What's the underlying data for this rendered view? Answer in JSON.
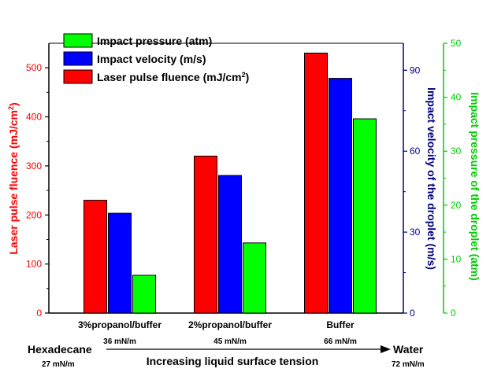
{
  "chart_data": {
    "type": "bar",
    "categories": [
      "3%propanol/buffer",
      "2%propanol/buffer",
      "Buffer"
    ],
    "category_sublabels": [
      "36 mN/m",
      "45 mN/m",
      "66 mN/m"
    ],
    "series": [
      {
        "name": "Laser pulse fluence (mJ/cm²)",
        "axis": "left",
        "color": "#ff0000",
        "values": [
          230,
          320,
          530
        ]
      },
      {
        "name": "Impact velocity (m/s)",
        "axis": "right1",
        "color": "#0000ff",
        "values": [
          37,
          51,
          87
        ]
      },
      {
        "name": "Impact pressure (atm)",
        "axis": "right2",
        "color": "#00ff00",
        "values": [
          7,
          13,
          36
        ]
      }
    ],
    "axes": {
      "left": {
        "label_main": "Laser pulse fluence (mJ/cm",
        "label_sup": "2",
        "label_end": ")",
        "ylim": [
          0,
          550
        ],
        "ticks": [
          0,
          100,
          200,
          300,
          400,
          500
        ],
        "color": "#ff0000"
      },
      "right1": {
        "label": "Impact velocity of the droplet (m/s)",
        "ylim": [
          0,
          100
        ],
        "ticks": [
          0,
          30,
          60,
          90
        ],
        "color": "#000080"
      },
      "right2": {
        "label": "Impact pressure of the droplet (atm)",
        "ylim": [
          0,
          50
        ],
        "ticks": [
          0,
          10,
          20,
          30,
          40,
          50
        ],
        "color": "#00cc00"
      }
    },
    "legend": {
      "placement": "top-left",
      "entries": [
        {
          "main": "Impact pressure (atm)",
          "sup": "",
          "end": "",
          "color": "#00ff00"
        },
        {
          "main": "Impact velocity (m/s)",
          "sup": "",
          "end": "",
          "color": "#0000ff"
        },
        {
          "main": "Laser pulse fluence (mJ/cm",
          "sup": "2",
          "end": ")",
          "color": "#ff0000"
        }
      ]
    },
    "annotations": {
      "left_end_label": "Hexadecane",
      "left_end_value": "27 mN/m",
      "right_end_label": "Water",
      "right_end_value": "72 mN/m",
      "arrow_caption": "Increasing liquid surface tension"
    }
  }
}
